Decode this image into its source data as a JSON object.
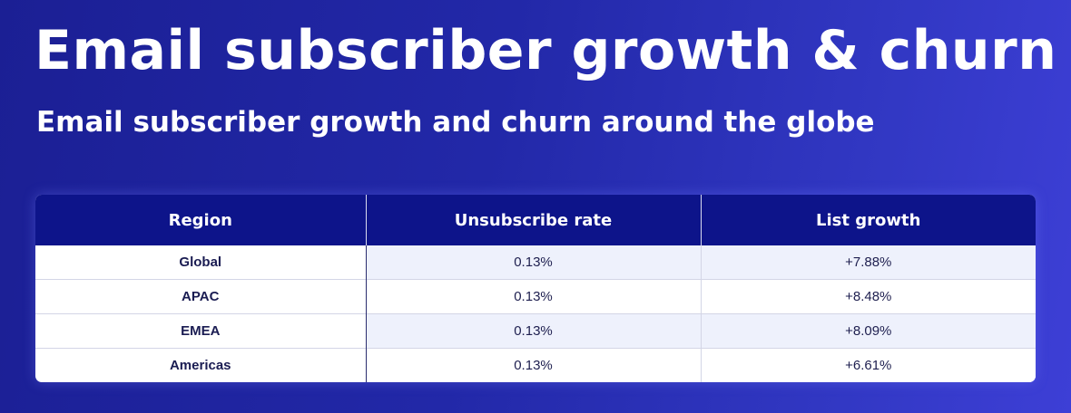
{
  "title": "Email subscriber growth & churn",
  "subtitle": "Email subscriber growth and churn around the globe",
  "colors": {
    "header_bg": "#0d148a",
    "background_start": "#1b1f94",
    "background_end": "#3d3fd6",
    "row_stripe": "#eef1fc"
  },
  "chart_data": {
    "type": "table",
    "title": "Email subscriber growth & churn",
    "subtitle": "Email subscriber growth and churn around the globe",
    "columns": [
      "Region",
      "Unsubscribe rate",
      "List growth"
    ],
    "rows": [
      [
        "Global",
        "0.13%",
        "+7.88%"
      ],
      [
        "APAC",
        "0.13%",
        "+8.48%"
      ],
      [
        "EMEA",
        "0.13%",
        "+8.09%"
      ],
      [
        "Americas",
        "0.13%",
        "+6.61%"
      ]
    ]
  }
}
